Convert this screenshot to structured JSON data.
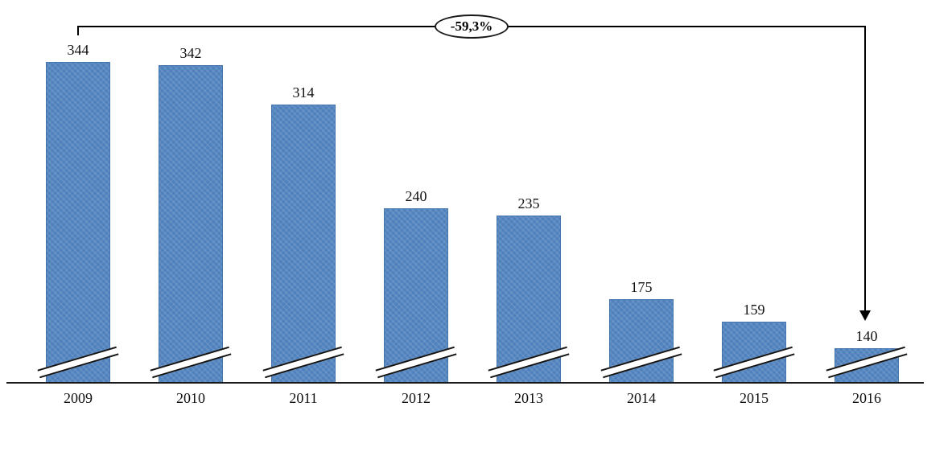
{
  "chart_data": {
    "type": "bar",
    "title": "",
    "xlabel": "",
    "ylabel": "",
    "categories": [
      "2009",
      "2010",
      "2011",
      "2012",
      "2013",
      "2014",
      "2015",
      "2016"
    ],
    "values": [
      344,
      342,
      314,
      240,
      235,
      175,
      159,
      140
    ],
    "bar_color": "#4e80bc",
    "value_labels_shown": true,
    "axis_break_marks": true,
    "grid": false,
    "legend": "none",
    "ylim_visible": [
      116,
      360
    ],
    "annotation": {
      "label": "-59,3%",
      "from_category": "2009",
      "to_category": "2016",
      "shape": "ellipse-on-bracket-with-down-arrow"
    }
  }
}
